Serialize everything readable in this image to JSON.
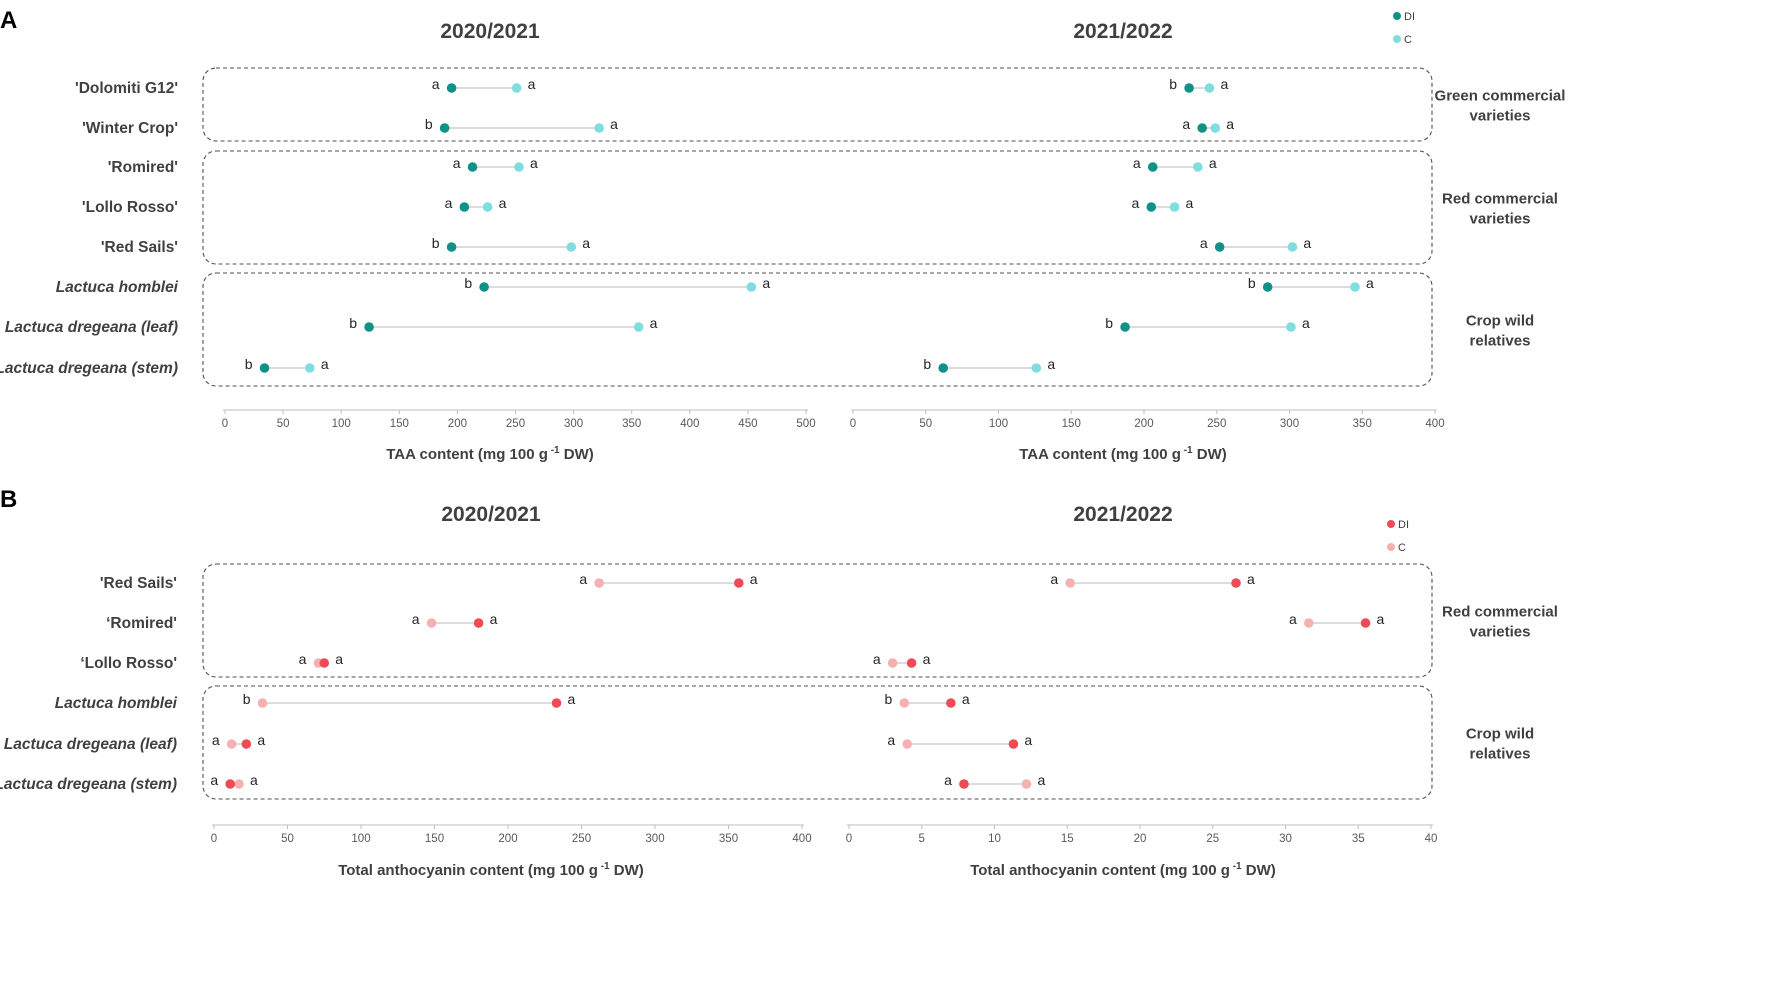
{
  "colors": {
    "A_DI": "#0e9187",
    "A_C": "#7fdde0",
    "B_DI": "#ef4a55",
    "B_C": "#f5b1b1",
    "connector": "#c8c8c8",
    "box": "#505050",
    "axis": "#bfbfbf"
  },
  "chart_data": [
    {
      "panel": "A",
      "type": "dumbbell",
      "legend": [
        "DI",
        "C"
      ],
      "rows": [
        "'Dolomiti G12'",
        "'Winter Crop'",
        "'Romired'",
        "'Lollo Rosso'",
        "'Red Sails'",
        "Lactuca homblei",
        "Lactuca dregeana  (leaf)",
        "Lactuca dregeana (stem)"
      ],
      "row_italic": [
        false,
        false,
        false,
        false,
        false,
        true,
        true,
        true
      ],
      "groups": [
        {
          "label1": "Green commercial",
          "label2": "varieties",
          "rows": [
            0,
            1
          ]
        },
        {
          "label1": "Red commercial",
          "label2": "varieties",
          "rows": [
            2,
            3,
            4
          ]
        },
        {
          "label1": "Crop wild",
          "label2": "relatives",
          "rows": [
            5,
            6,
            7
          ]
        }
      ],
      "subplots": [
        {
          "title": "2020/2021",
          "xlabel": "TAA content (mg 100 g",
          "xlabel_sup": "-1",
          "xlabel_end": " DW)",
          "xlim": [
            0,
            500
          ],
          "ticks": [
            0,
            50,
            100,
            150,
            200,
            250,
            300,
            350,
            400,
            450,
            500
          ],
          "DI": [
            195,
            189,
            213,
            206,
            195,
            223,
            124,
            34
          ],
          "C": [
            251,
            322,
            253,
            226,
            298,
            453,
            356,
            73
          ],
          "DI_letter": [
            "a",
            "b",
            "a",
            "a",
            "b",
            "b",
            "b",
            "b"
          ],
          "C_letter": [
            "a",
            "a",
            "a",
            "a",
            "a",
            "a",
            "a",
            "a"
          ]
        },
        {
          "title": "2021/2022",
          "xlabel": "TAA content (mg 100 g",
          "xlabel_sup": "-1",
          "xlabel_end": " DW)",
          "xlim": [
            0,
            400
          ],
          "ticks": [
            0,
            50,
            100,
            150,
            200,
            250,
            300,
            350,
            400
          ],
          "DI": [
            231,
            240,
            206,
            205,
            252,
            285,
            187,
            62
          ],
          "C": [
            245,
            249,
            237,
            221,
            302,
            345,
            301,
            126
          ],
          "DI_letter": [
            "b",
            "a",
            "a",
            "a",
            "a",
            "b",
            "b",
            "b"
          ],
          "C_letter": [
            "a",
            "a",
            "a",
            "a",
            "a",
            "a",
            "a",
            "a"
          ]
        }
      ]
    },
    {
      "panel": "B",
      "type": "dumbbell",
      "legend": [
        "DI",
        "C"
      ],
      "rows": [
        "'Red Sails'",
        "‘Romired'",
        "‘Lollo Rosso'",
        "Lactuca homblei",
        "Lactuca dregeana  (leaf)",
        "Lactuca dregeana (stem)"
      ],
      "row_italic": [
        false,
        false,
        false,
        true,
        true,
        true
      ],
      "groups": [
        {
          "label1": "Red commercial",
          "label2": "varieties",
          "rows": [
            0,
            1,
            2
          ]
        },
        {
          "label1": "Crop wild",
          "label2": "relatives",
          "rows": [
            3,
            4,
            5
          ]
        }
      ],
      "subplots": [
        {
          "title": "2020/2021",
          "xlabel": "Total anthocyanin content (mg 100 g",
          "xlabel_sup": "-1",
          "xlabel_end": " DW)",
          "xlim": [
            0,
            400
          ],
          "ticks": [
            0,
            50,
            100,
            150,
            200,
            250,
            300,
            350,
            400
          ],
          "DI": [
            357,
            180,
            75,
            233,
            22,
            11
          ],
          "C": [
            262,
            148,
            71,
            33,
            12,
            17
          ],
          "DI_letter": [
            "a",
            "a",
            "a",
            "a",
            "a",
            "a"
          ],
          "C_letter": [
            "a",
            "a",
            "a",
            "b",
            "a",
            "a"
          ]
        },
        {
          "title": "2021/2022",
          "xlabel": "Total anthocyanin content (mg 100 g",
          "xlabel_sup": "-1",
          "xlabel_end": " DW)",
          "xlim": [
            0,
            40
          ],
          "ticks": [
            0,
            5,
            10,
            15,
            20,
            25,
            30,
            35,
            40
          ],
          "DI": [
            26.6,
            35.5,
            4.3,
            7.0,
            11.3,
            7.9
          ],
          "C": [
            15.2,
            31.6,
            3.0,
            3.8,
            4.0,
            12.2
          ],
          "DI_letter": [
            "a",
            "a",
            "a",
            "a",
            "a",
            "a"
          ],
          "C_letter": [
            "a",
            "a",
            "a",
            "b",
            "a",
            "a"
          ]
        }
      ]
    }
  ]
}
